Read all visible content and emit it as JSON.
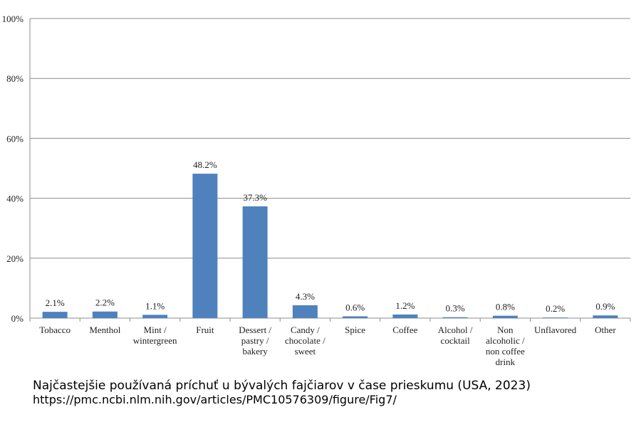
{
  "chart_data": {
    "type": "bar",
    "categories": [
      [
        "Tobacco"
      ],
      [
        "Menthol"
      ],
      [
        "Mint /",
        "wintergreen"
      ],
      [
        "Fruit"
      ],
      [
        "Dessert /",
        "pastry /",
        "bakery"
      ],
      [
        "Candy /",
        "chocolate /",
        "sweet"
      ],
      [
        "Spice"
      ],
      [
        "Coffee"
      ],
      [
        "Alcohol /",
        "cocktail"
      ],
      [
        "Non",
        "alcoholic /",
        "non coffee",
        "drink"
      ],
      [
        "Unflavored"
      ],
      [
        "Other"
      ]
    ],
    "values": [
      2.1,
      2.2,
      1.1,
      48.2,
      37.3,
      4.3,
      0.6,
      1.2,
      0.3,
      0.8,
      0.2,
      0.9
    ],
    "data_labels": [
      "2.1%",
      "2.2%",
      "1.1%",
      "48.2%",
      "37.3%",
      "4.3%",
      "0.6%",
      "1.2%",
      "0.3%",
      "0.8%",
      "0.2%",
      "0.9%"
    ],
    "ylim": [
      0,
      100
    ],
    "yticks": [
      0,
      20,
      40,
      60,
      80,
      100
    ],
    "ytick_labels": [
      "0%",
      "20%",
      "40%",
      "60%",
      "80%",
      "100%"
    ],
    "grid": true,
    "bar_color": "#4f81bd",
    "grid_color": "#8c8c8c"
  },
  "caption": "Najčastejšie používaná príchuť u bývalých fajčiarov v čase prieskumu (USA, 2023)",
  "source": "https://pmc.ncbi.nlm.nih.gov/articles/PMC10576309/figure/Fig7/"
}
